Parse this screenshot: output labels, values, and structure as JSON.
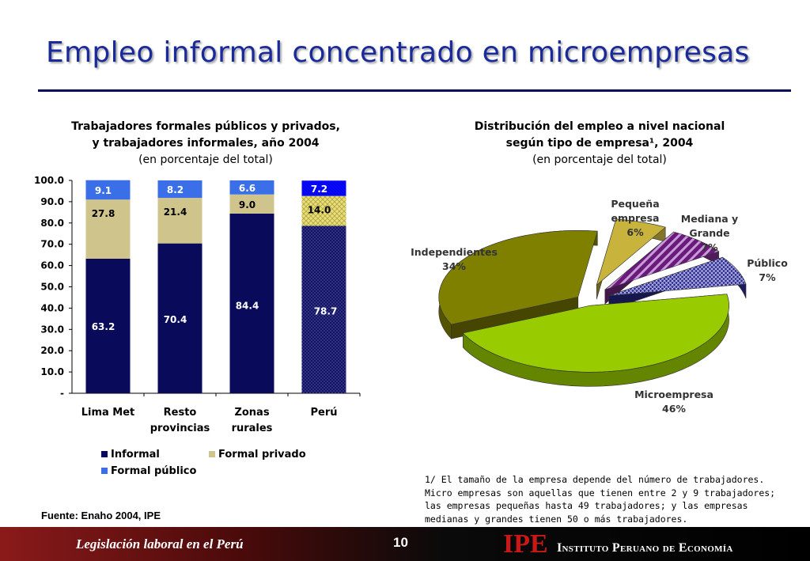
{
  "slide": {
    "title": "Empleo informal concentrado en microempresas",
    "source": "Fuente: Enaho 2004, IPE",
    "footnote": "1/ El tamaño de la empresa depende del número de trabajadores. Micro empresas son aquellas que tienen entre 2 y 9 trabajadores; las empresas pequeñas hasta 49 trabajadores; y las empresas medianas y grandes tienen 50 o más trabajadores.",
    "footer_left": "Legislación laboral en el Perú",
    "page_number": "10",
    "logo": "IPE",
    "organization": "Instituto Peruano de Economía"
  },
  "chart_data": [
    {
      "type": "bar",
      "stacked": true,
      "title_line1": "Trabajadores formales públicos y privados,",
      "title_line2": "y trabajadores informales, año 2004",
      "subtitle": "(en porcentaje del total)",
      "categories": [
        [
          "Lima Met"
        ],
        [
          "Resto",
          "provincias"
        ],
        [
          "Zonas",
          "rurales"
        ],
        [
          "Perú"
        ]
      ],
      "series": [
        {
          "name": "Informal",
          "values": [
            63.2,
            70.4,
            84.4,
            78.7
          ],
          "color": "#0a0a5a"
        },
        {
          "name": "Formal privado",
          "values": [
            27.8,
            21.4,
            9.0,
            14.0
          ],
          "color": "#cfc48c"
        },
        {
          "name": "Formal público",
          "values": [
            9.1,
            8.2,
            6.6,
            7.2
          ],
          "color": "#3a6fe8"
        }
      ],
      "y_ticks": [
        "-",
        "10.0",
        "20.0",
        "30.0",
        "40.0",
        "50.0",
        "60.0",
        "70.0",
        "80.0",
        "90.0",
        "100.0"
      ],
      "ylim": [
        0,
        100
      ],
      "highlight_category": "Perú",
      "legend_position": "bottom"
    },
    {
      "type": "pie",
      "style": "3d-exploded",
      "title_line1": "Distribución del empleo a nivel nacional",
      "title_line2": "según tipo de empresa¹, 2004",
      "subtitle": "(en porcentaje del total)",
      "slices": [
        {
          "name": "Microempresa",
          "value": 46,
          "label": "46%",
          "color": "#99cc00"
        },
        {
          "name": "Independientes",
          "value": 34,
          "label": "34%",
          "color": "#808000"
        },
        {
          "name": "Pequeña empresa",
          "label_lines": [
            "Pequeña",
            "empresa"
          ],
          "value": 6,
          "label": "6%",
          "color": "#c8b43c"
        },
        {
          "name": "Mediana y Grande",
          "label_lines": [
            "Mediana y",
            "Grande"
          ],
          "value": 7,
          "label": "7%",
          "color": "#7a2a8a"
        },
        {
          "name": "Público",
          "label_lines": [
            "Público"
          ],
          "value": 7,
          "label": "7%",
          "color": "#2a2a90"
        }
      ]
    }
  ]
}
